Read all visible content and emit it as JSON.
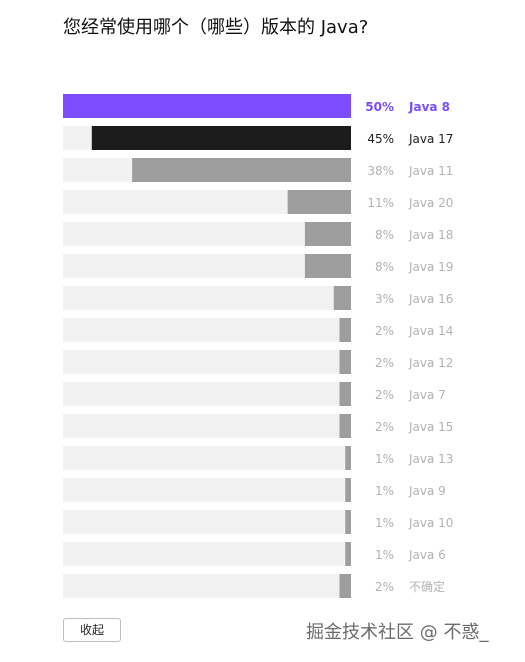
{
  "title": "您经常使用哪个（哪些）版本的 Java?",
  "chart_data": {
    "type": "bar",
    "orientation": "horizontal",
    "xlim": [
      0,
      50
    ],
    "highlight_color": "#7c4dff",
    "secondary_color": "#1c1c1c",
    "default_color": "#9e9e9e",
    "track_color": "#f2f2f2",
    "rows": [
      {
        "label": "Java 8",
        "value": 50,
        "value_label": "50%",
        "emphasis": "primary"
      },
      {
        "label": "Java 17",
        "value": 45,
        "value_label": "45%",
        "emphasis": "secondary"
      },
      {
        "label": "Java 11",
        "value": 38,
        "value_label": "38%",
        "emphasis": "normal"
      },
      {
        "label": "Java 20",
        "value": 11,
        "value_label": "11%",
        "emphasis": "normal"
      },
      {
        "label": "Java 18",
        "value": 8,
        "value_label": "8%",
        "emphasis": "normal"
      },
      {
        "label": "Java 19",
        "value": 8,
        "value_label": "8%",
        "emphasis": "normal"
      },
      {
        "label": "Java 16",
        "value": 3,
        "value_label": "3%",
        "emphasis": "normal"
      },
      {
        "label": "Java 14",
        "value": 2,
        "value_label": "2%",
        "emphasis": "normal"
      },
      {
        "label": "Java 12",
        "value": 2,
        "value_label": "2%",
        "emphasis": "normal"
      },
      {
        "label": "Java 7",
        "value": 2,
        "value_label": "2%",
        "emphasis": "normal"
      },
      {
        "label": "Java 15",
        "value": 2,
        "value_label": "2%",
        "emphasis": "normal"
      },
      {
        "label": "Java 13",
        "value": 1,
        "value_label": "1%",
        "emphasis": "normal"
      },
      {
        "label": "Java 9",
        "value": 1,
        "value_label": "1%",
        "emphasis": "normal"
      },
      {
        "label": "Java 10",
        "value": 1,
        "value_label": "1%",
        "emphasis": "normal"
      },
      {
        "label": "Java 6",
        "value": 1,
        "value_label": "1%",
        "emphasis": "normal"
      },
      {
        "label": "不确定",
        "value": 2,
        "value_label": "2%",
        "emphasis": "normal"
      }
    ]
  },
  "collapse_button": {
    "label": "收起"
  },
  "watermark": {
    "text": "掘金技术社区 @ 不惑_"
  }
}
